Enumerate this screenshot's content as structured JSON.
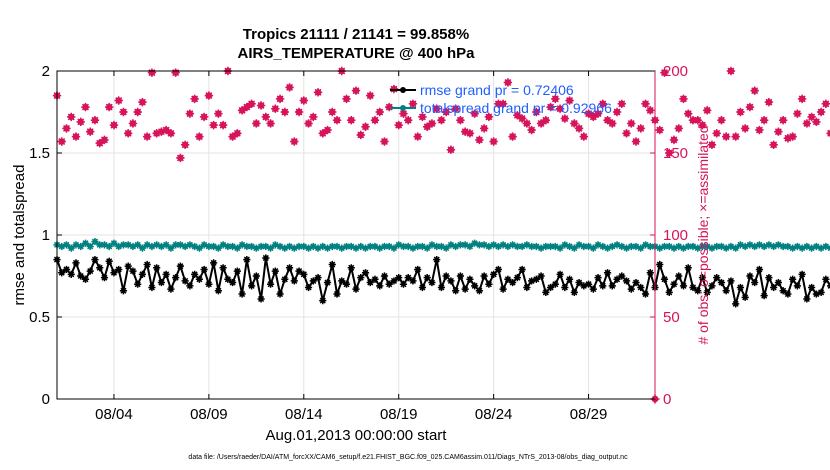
{
  "chart_data": {
    "type": "line",
    "title": "Tropics 21111 / 21141 = 99.858%",
    "subtitle": "AIRS_TEMPERATURE @ 400 hPa",
    "xlabel": "Aug.01,2013 00:00:00 start",
    "ylabel": "rmse and totalspread",
    "ylabel_right": "# of obs: o=possible; ×=assimilated",
    "footer": "data file: /Users/raeder/DAI/ATM_forcXX/CAM6_setup/f.e21.FHIST_BGC.f09_025.CAM6assim.011/Diags_NTrS_2013-08/obs_diag_output.nc",
    "x_start_day": 1.0,
    "x_step_days": 0.25,
    "xlim": [
      1.0,
      32.5
    ],
    "ylim": [
      0,
      2
    ],
    "ylim_right": [
      0,
      200
    ],
    "xticks": [
      {
        "day": 4,
        "label": "08/04"
      },
      {
        "day": 9,
        "label": "08/09"
      },
      {
        "day": 14,
        "label": "08/14"
      },
      {
        "day": 19,
        "label": "08/19"
      },
      {
        "day": 24,
        "label": "08/24"
      },
      {
        "day": 29,
        "label": "08/29"
      }
    ],
    "yticks": [
      {
        "value": 0,
        "label": "0"
      },
      {
        "value": 0.5,
        "label": "0.5"
      },
      {
        "value": 1,
        "label": "1"
      },
      {
        "value": 1.5,
        "label": "1.5"
      },
      {
        "value": 2,
        "label": "2"
      }
    ],
    "yticks_right": [
      {
        "value": 0,
        "label": "0"
      },
      {
        "value": 50,
        "label": "50"
      },
      {
        "value": 100,
        "label": "100"
      },
      {
        "value": 150,
        "label": "150"
      },
      {
        "value": 200,
        "label": "200"
      }
    ],
    "legend": [
      {
        "name": "rmse grand pr = 0.72406",
        "color": "#000000"
      },
      {
        "name": "totalspread grand pr = 0.92966",
        "color": "#008080"
      }
    ],
    "series": [
      {
        "name": "rmse",
        "axis": "left",
        "color": "#000000",
        "marker": "star",
        "values": [
          0.85,
          0.77,
          0.79,
          0.76,
          0.83,
          0.75,
          0.73,
          0.78,
          0.85,
          0.8,
          0.74,
          0.84,
          0.77,
          0.79,
          0.66,
          0.81,
          0.78,
          0.7,
          0.76,
          0.82,
          0.68,
          0.8,
          0.71,
          0.76,
          0.67,
          0.74,
          0.81,
          0.72,
          0.69,
          0.76,
          0.73,
          0.79,
          0.7,
          0.83,
          0.66,
          0.8,
          0.73,
          0.71,
          0.78,
          0.64,
          0.85,
          0.69,
          0.75,
          0.61,
          0.86,
          0.7,
          0.78,
          0.64,
          0.73,
          0.8,
          0.72,
          0.78,
          0.76,
          0.68,
          0.72,
          0.74,
          0.6,
          0.71,
          0.82,
          0.64,
          0.72,
          0.7,
          0.8,
          0.67,
          0.74,
          0.77,
          0.71,
          0.73,
          0.69,
          0.75,
          0.7,
          0.72,
          0.74,
          0.7,
          0.74,
          0.72,
          0.79,
          0.68,
          0.74,
          0.71,
          0.85,
          0.68,
          0.75,
          0.72,
          0.66,
          0.75,
          0.67,
          0.73,
          0.69,
          0.66,
          0.75,
          0.7,
          0.76,
          0.79,
          0.67,
          0.73,
          0.71,
          0.74,
          0.79,
          0.68,
          0.72,
          0.73,
          0.75,
          0.65,
          0.68,
          0.7,
          0.76,
          0.68,
          0.73,
          0.65,
          0.71,
          0.69,
          0.7,
          0.67,
          0.74,
          0.69,
          0.77,
          0.69,
          0.73,
          0.75,
          0.72,
          0.67,
          0.71,
          0.68,
          0.64,
          0.77,
          0.68,
          0.82,
          0.73,
          0.65,
          0.7,
          0.75,
          0.69,
          0.8,
          0.68,
          0.66,
          0.74,
          0.65,
          0.69,
          0.74,
          0.71,
          0.66,
          0.72,
          0.58,
          0.68,
          0.62,
          0.75,
          0.71,
          0.79,
          0.63,
          0.74,
          0.68,
          0.71,
          0.66,
          0.64,
          0.73,
          0.69,
          0.76,
          0.61,
          0.68,
          0.64,
          0.65,
          0.73,
          0.69,
          0.61,
          0.73,
          0.67,
          0.65,
          0.74,
          0.66,
          0.83,
          0.76,
          0.79,
          0.72,
          0.66,
          0.66
        ]
      },
      {
        "name": "totalspread",
        "axis": "left",
        "color": "#008080",
        "marker": "star",
        "values": [
          0.94,
          0.93,
          0.94,
          0.92,
          0.94,
          0.93,
          0.95,
          0.93,
          0.96,
          0.94,
          0.94,
          0.93,
          0.95,
          0.93,
          0.94,
          0.94,
          0.93,
          0.94,
          0.92,
          0.94,
          0.93,
          0.94,
          0.93,
          0.94,
          0.92,
          0.94,
          0.94,
          0.93,
          0.94,
          0.93,
          0.92,
          0.94,
          0.93,
          0.93,
          0.92,
          0.94,
          0.93,
          0.93,
          0.92,
          0.94,
          0.93,
          0.93,
          0.92,
          0.93,
          0.93,
          0.92,
          0.94,
          0.93,
          0.92,
          0.93,
          0.92,
          0.93,
          0.93,
          0.92,
          0.93,
          0.92,
          0.93,
          0.92,
          0.93,
          0.93,
          0.92,
          0.93,
          0.93,
          0.92,
          0.93,
          0.92,
          0.93,
          0.93,
          0.92,
          0.93,
          0.93,
          0.92,
          0.94,
          0.93,
          0.93,
          0.92,
          0.93,
          0.93,
          0.92,
          0.94,
          0.93,
          0.93,
          0.92,
          0.94,
          0.93,
          0.94,
          0.94,
          0.93,
          0.95,
          0.94,
          0.94,
          0.93,
          0.94,
          0.93,
          0.94,
          0.93,
          0.94,
          0.93,
          0.93,
          0.94,
          0.93,
          0.93,
          0.92,
          0.93,
          0.93,
          0.93,
          0.92,
          0.94,
          0.93,
          0.92,
          0.94,
          0.93,
          0.93,
          0.92,
          0.94,
          0.93,
          0.92,
          0.93,
          0.94,
          0.93,
          0.92,
          0.93,
          0.93,
          0.92,
          0.94,
          0.93,
          0.93,
          0.92,
          0.93,
          0.93,
          0.92,
          0.93,
          0.92,
          0.93,
          0.93,
          0.92,
          0.93,
          0.93,
          0.92,
          0.93,
          0.93,
          0.92,
          0.93,
          0.92,
          0.94,
          0.93,
          0.94,
          0.93,
          0.94,
          0.93,
          0.94,
          0.93,
          0.94,
          0.93,
          0.93,
          0.92,
          0.93,
          0.92,
          0.93,
          0.92,
          0.93,
          0.92,
          0.93,
          0.92,
          0.92,
          0.93,
          0.92,
          0.92,
          0.91,
          0.93,
          0.92,
          0.92,
          0.92,
          0.93,
          0.92,
          0.93,
          0.92,
          0.93
        ]
      },
      {
        "name": "# of obs",
        "axis": "right",
        "color": "#d6135b",
        "marker": "circle+cross",
        "values": [
          185,
          157,
          165,
          172,
          160,
          169,
          178,
          163,
          170,
          156,
          158,
          178,
          167,
          182,
          175,
          162,
          168,
          175,
          181,
          160,
          199,
          162,
          163,
          164,
          162,
          199,
          147,
          155,
          174,
          183,
          160,
          172,
          185,
          167,
          174,
          167,
          200,
          160,
          162,
          176,
          178,
          180,
          168,
          179,
          172,
          168,
          177,
          183,
          175,
          190,
          157,
          175,
          182,
          168,
          172,
          187,
          162,
          164,
          175,
          170,
          200,
          183,
          170,
          188,
          161,
          166,
          185,
          170,
          175,
          157,
          178,
          189,
          167,
          174,
          170,
          180,
          160,
          172,
          166,
          168,
          177,
          170,
          175,
          152,
          177,
          170,
          163,
          162,
          174,
          158,
          165,
          172,
          157,
          180,
          180,
          193,
          160,
          173,
          171,
          168,
          164,
          175,
          168,
          170,
          178,
          183,
          177,
          171,
          182,
          168,
          165,
          160,
          174,
          172,
          174,
          180,
          170,
          168,
          175,
          180,
          162,
          168,
          157,
          165,
          180,
          176,
          170,
          164,
          199,
          150,
          158,
          165,
          183,
          174,
          170,
          170,
          167,
          176,
          155,
          162,
          170,
          160,
          200,
          160,
          175,
          165,
          178,
          188,
          164,
          170,
          181,
          155,
          163,
          170,
          159,
          160,
          174,
          183,
          168,
          172,
          169,
          175,
          180,
          162,
          168,
          172,
          179,
          163,
          167,
          175,
          172,
          165,
          200,
          164,
          162,
          180,
          175
        ]
      }
    ],
    "extra_points": [
      {
        "name": "final obs count",
        "axis": "right",
        "day": 32.75,
        "value": 0
      }
    ]
  }
}
